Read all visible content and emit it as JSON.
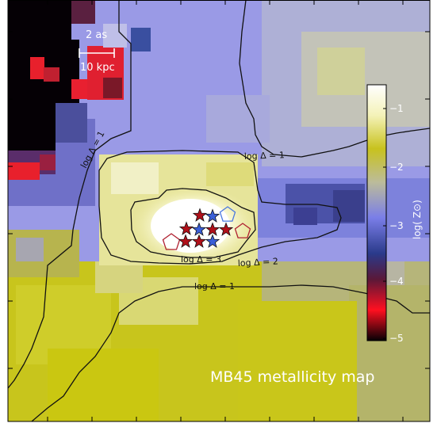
{
  "scale_bar": {
    "angular": "2 as",
    "physical": "10 kpc"
  },
  "contour_labels": {
    "log_delta_1_left": "log Δ = 1",
    "log_delta_1_upper": "log Δ = 1",
    "log_delta_1_lower": "log Δ = 1",
    "log_delta_2": "log Δ = 2",
    "log_delta_3": "log Δ = 3"
  },
  "colorbar": {
    "ticks": [
      "−1",
      "−2",
      "−3",
      "−4",
      "−5"
    ],
    "label": "log( Z⊙)"
  },
  "caption": "MB45 metallicity map",
  "markers": {
    "red_star_color": "#b0101a",
    "blue_star_color": "#3a5fd8",
    "red_pentagon_color": "#b02030",
    "blue_pentagon_color": "#4a78e0"
  }
}
